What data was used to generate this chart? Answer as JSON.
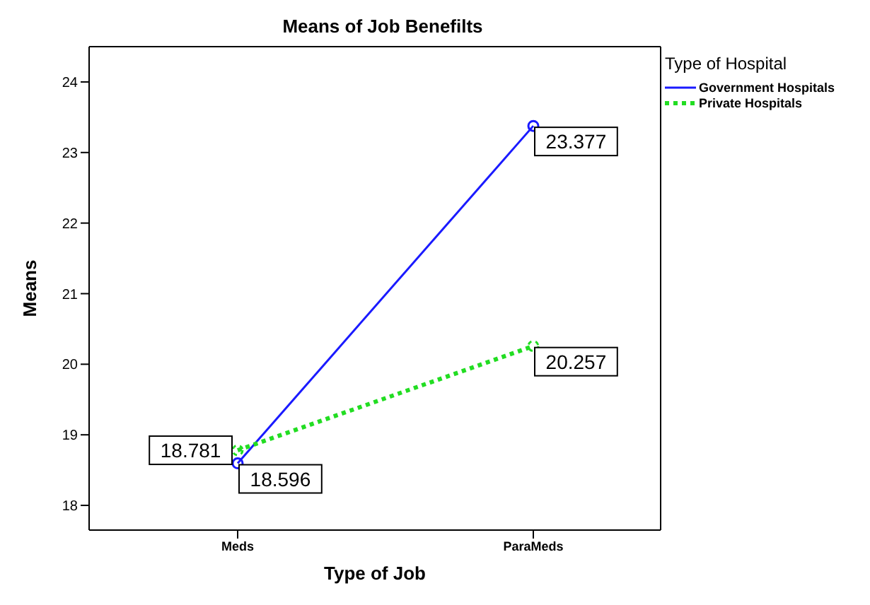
{
  "chart_data": {
    "type": "line",
    "title": "Means of Job Benefilts",
    "xlabel": "Type of Job",
    "ylabel": "Means",
    "legend_title": "Type of Hospital",
    "categories": [
      "Meds",
      "ParaMeds"
    ],
    "series": [
      {
        "name": "Government Hospitals",
        "color": "#1a1aff",
        "values": [
          18.596,
          23.377
        ],
        "line_style": "solid"
      },
      {
        "name": "Private Hospitals",
        "color": "#22dd22",
        "values": [
          18.781,
          20.257
        ],
        "line_style": "dotted"
      }
    ],
    "ylim": [
      17.65,
      24.5
    ],
    "yticks": [
      18,
      19,
      20,
      21,
      22,
      23,
      24
    ],
    "legend": "top right",
    "marker": "circle",
    "data_labels": true
  }
}
